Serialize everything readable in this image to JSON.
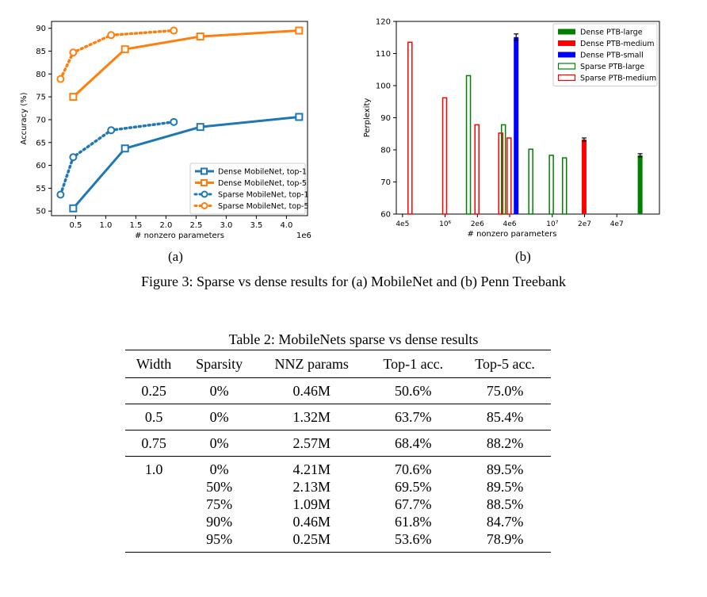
{
  "figure": {
    "subfig_a": "(a)",
    "subfig_b": "(b)",
    "caption": "Figure 3: Sparse vs dense results for (a) MobileNet and (b) Penn Treebank"
  },
  "chart_data": [
    {
      "type": "line",
      "xlabel": "# nonzero parameters",
      "ylabel": "Accuracy (%)",
      "x_multiplier_label": "1e6",
      "xlim": [
        0.1,
        4.35
      ],
      "ylim": [
        49,
        91.5
      ],
      "xticks": [
        0.5,
        1.0,
        1.5,
        2.0,
        2.5,
        3.0,
        3.5,
        4.0
      ],
      "xtick_labels": [
        "0.5",
        "1.0",
        "1.5",
        "2.0",
        "2.5",
        "3.0",
        "3.5",
        "4.0"
      ],
      "yticks": [
        50,
        55,
        60,
        65,
        70,
        75,
        80,
        85,
        90
      ],
      "ytick_labels": [
        "50",
        "55",
        "60",
        "65",
        "70",
        "75",
        "80",
        "85",
        "90"
      ],
      "legend_position": "lower-right",
      "series": [
        {
          "name": "Dense MobileNet, top-1",
          "color": "#1f77b4",
          "style": "solid",
          "marker": "square",
          "x": [
            0.46,
            1.32,
            2.57,
            4.21
          ],
          "y": [
            50.6,
            63.7,
            68.4,
            70.6
          ]
        },
        {
          "name": "Dense MobileNet, top-5",
          "color": "#ff7f0e",
          "style": "solid",
          "marker": "square",
          "x": [
            0.46,
            1.32,
            2.57,
            4.21
          ],
          "y": [
            75.0,
            85.4,
            88.2,
            89.5
          ]
        },
        {
          "name": "Sparse MobileNet, top-1",
          "color": "#1f77b4",
          "style": "dotted",
          "marker": "circle",
          "x": [
            0.25,
            0.46,
            1.09,
            2.13
          ],
          "y": [
            53.6,
            61.8,
            67.7,
            69.5
          ]
        },
        {
          "name": "Sparse MobileNet, top-5",
          "color": "#ff7f0e",
          "style": "dotted",
          "marker": "circle",
          "x": [
            0.25,
            0.46,
            1.09,
            2.13
          ],
          "y": [
            78.9,
            84.7,
            88.5,
            89.5
          ]
        }
      ]
    },
    {
      "type": "bar",
      "xscale": "log",
      "xlabel": "# nonzero parameters",
      "ylabel": "Perplexity",
      "xlim": [
        350000,
        100000000
      ],
      "ylim": [
        60,
        120
      ],
      "xticks": [
        400000,
        1000000,
        2000000,
        4000000,
        10000000,
        20000000,
        40000000
      ],
      "xtick_labels": [
        "4e5",
        "10⁶",
        "2e6",
        "4e6",
        "10⁷",
        "2e7",
        "4e7"
      ],
      "yticks": [
        60,
        70,
        80,
        90,
        100,
        110,
        120
      ],
      "ytick_labels": [
        "60",
        "70",
        "80",
        "90",
        "100",
        "110",
        "120"
      ],
      "legend_position": "top-right",
      "series": [
        {
          "name": "Dense PTB-large",
          "color": "#008000",
          "filled": true,
          "points": [
            {
              "x": 66000000,
              "y": 78.3,
              "err": 0.5
            }
          ]
        },
        {
          "name": "Dense PTB-medium",
          "color": "#ff0000",
          "filled": true,
          "points": [
            {
              "x": 19800000,
              "y": 83.2,
              "err": 0.5
            }
          ]
        },
        {
          "name": "Dense PTB-small",
          "color": "#0000ff",
          "filled": true,
          "points": [
            {
              "x": 4600000,
              "y": 115.1,
              "err": 1.0
            }
          ]
        },
        {
          "name": "Sparse PTB-large",
          "color": "#008000",
          "filled": false,
          "points": [
            {
              "x": 1650000,
              "y": 103.1
            },
            {
              "x": 3500000,
              "y": 87.8
            },
            {
              "x": 6300000,
              "y": 80.2
            },
            {
              "x": 9800000,
              "y": 78.3
            },
            {
              "x": 13000000,
              "y": 77.5
            }
          ]
        },
        {
          "name": "Sparse PTB-medium",
          "color": "#ff0000",
          "filled": false,
          "points": [
            {
              "x": 470000,
              "y": 113.5
            },
            {
              "x": 990000,
              "y": 96.2
            },
            {
              "x": 1980000,
              "y": 87.8
            },
            {
              "x": 3300000,
              "y": 85.2
            },
            {
              "x": 3950000,
              "y": 83.7
            }
          ]
        }
      ]
    }
  ],
  "table": {
    "caption": "Table 2: MobileNets sparse vs dense results",
    "headers": [
      "Width",
      "Sparsity",
      "NNZ params",
      "Top-1 acc.",
      "Top-5 acc."
    ],
    "groups": [
      [
        [
          "0.25",
          "0%",
          "0.46M",
          "50.6%",
          "75.0%"
        ]
      ],
      [
        [
          "0.5",
          "0%",
          "1.32M",
          "63.7%",
          "85.4%"
        ]
      ],
      [
        [
          "0.75",
          "0%",
          "2.57M",
          "68.4%",
          "88.2%"
        ]
      ],
      [
        [
          "1.0",
          "0%",
          "4.21M",
          "70.6%",
          "89.5%"
        ],
        [
          "",
          "50%",
          "2.13M",
          "69.5%",
          "89.5%"
        ],
        [
          "",
          "75%",
          "1.09M",
          "67.7%",
          "88.5%"
        ],
        [
          "",
          "90%",
          "0.46M",
          "61.8%",
          "84.7%"
        ],
        [
          "",
          "95%",
          "0.25M",
          "53.6%",
          "78.9%"
        ]
      ]
    ]
  }
}
